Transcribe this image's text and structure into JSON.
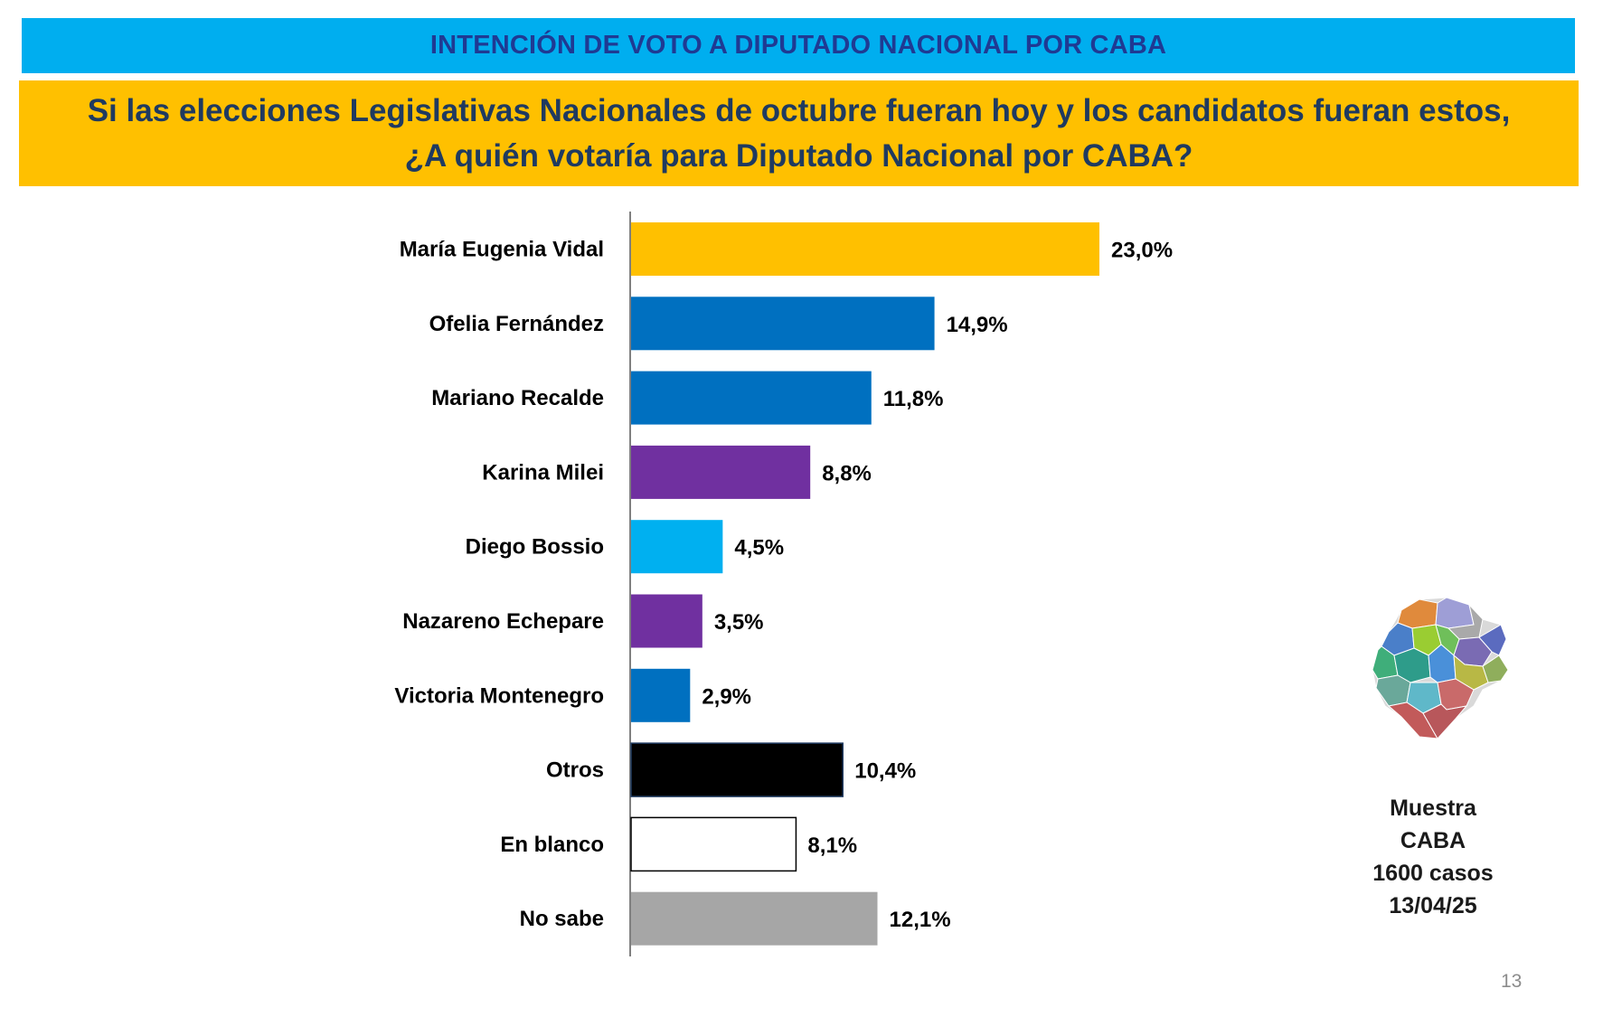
{
  "header": {
    "banner_title": "INTENCIÓN DE VOTO A DIPUTADO NACIONAL POR CABA",
    "question_line1": "Si las elecciones Legislativas Nacionales de octubre fueran hoy y los candidatos fueran estos,",
    "question_line2": "¿A quién votaría para Diputado Nacional por CABA?"
  },
  "colors": {
    "banner_bg": "#00AEEF",
    "banner_text": "#1F3A93",
    "question_bg": "#FFC000",
    "question_text": "#1F3A60"
  },
  "chart_data": {
    "type": "bar",
    "orientation": "horizontal",
    "categories": [
      "María Eugenia Vidal",
      "Ofelia Fernández",
      "Mariano Recalde",
      "Karina Milei",
      "Diego Bossio",
      "Nazareno Echepare",
      "Victoria Montenegro",
      "Otros",
      "En blanco",
      "No sabe"
    ],
    "values": [
      23.0,
      14.9,
      11.8,
      8.8,
      4.5,
      3.5,
      2.9,
      10.4,
      8.1,
      12.1
    ],
    "value_labels": [
      "23,0%",
      "14,9%",
      "11,8%",
      "8,8%",
      "4,5%",
      "3,5%",
      "2,9%",
      "10,4%",
      "8,1%",
      "12,1%"
    ],
    "bar_colors": [
      "#FFC000",
      "#0070C0",
      "#0070C0",
      "#7030A0",
      "#00B0F0",
      "#7030A0",
      "#0070C0",
      "#000000",
      "#FFFFFF",
      "#A6A6A6"
    ],
    "unit": "%",
    "xlim": [
      0,
      23.0
    ],
    "grid": false,
    "legend": "none"
  },
  "sample": {
    "line1": "Muestra",
    "line2": "CABA",
    "line3": "1600 casos",
    "line4": "13/04/25"
  },
  "map_icon": "caba-neighborhood-map",
  "page_number": "13"
}
